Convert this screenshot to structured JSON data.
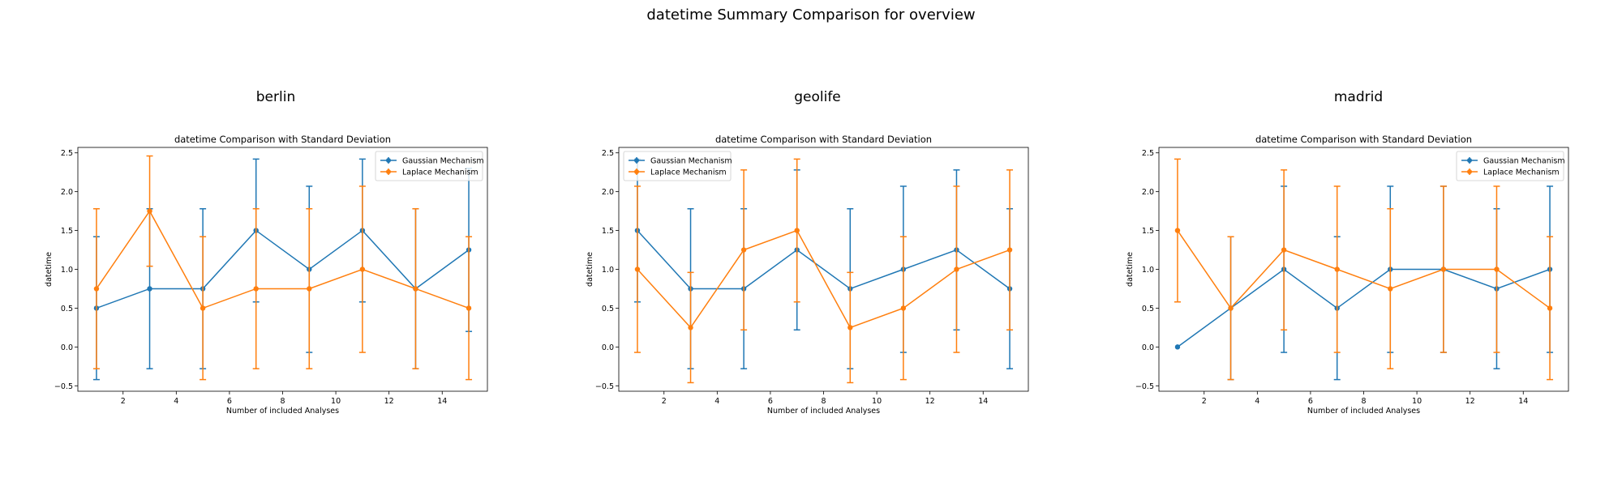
{
  "suptitle": "datetime Summary Comparison for overview",
  "colors": {
    "gaussian": "#1f77b4",
    "laplace": "#ff7f0e"
  },
  "chart_data": [
    {
      "type": "line",
      "subfigure_title": "berlin",
      "title": "datetime Comparison with Standard Deviation",
      "xlabel": "Number of included Analyses",
      "ylabel": "datetime",
      "xlim": [
        0.3,
        15.7
      ],
      "ylim": [
        -0.57,
        2.57
      ],
      "xticks": [
        2,
        4,
        6,
        8,
        10,
        12,
        14
      ],
      "yticks": [
        -0.5,
        0.0,
        0.5,
        1.0,
        1.5,
        2.0,
        2.5
      ],
      "ytick_labels": [
        "−0.5",
        "0.0",
        "0.5",
        "1.0",
        "1.5",
        "2.0",
        "2.5"
      ],
      "grid": false,
      "legend_position": "upper right",
      "x": [
        1,
        3,
        5,
        7,
        9,
        11,
        13,
        15
      ],
      "series": [
        {
          "name": "Gaussian Mechanism",
          "color": "#1f77b4",
          "values": [
            0.5,
            0.75,
            0.75,
            1.5,
            1.0,
            1.5,
            0.75,
            1.25
          ],
          "std": [
            0.92,
            1.03,
            1.03,
            0.92,
            1.07,
            0.92,
            1.03,
            1.05
          ]
        },
        {
          "name": "Laplace Mechanism",
          "color": "#ff7f0e",
          "values": [
            0.75,
            1.75,
            0.5,
            0.75,
            0.75,
            1.0,
            0.75,
            0.5
          ],
          "std": [
            1.03,
            0.71,
            0.92,
            1.03,
            1.03,
            1.07,
            1.03,
            0.92
          ]
        }
      ]
    },
    {
      "type": "line",
      "subfigure_title": "geolife",
      "title": "datetime Comparison with Standard Deviation",
      "xlabel": "Number of included Analyses",
      "ylabel": "datetime",
      "xlim": [
        0.3,
        15.7
      ],
      "ylim": [
        -0.57,
        2.57
      ],
      "xticks": [
        2,
        4,
        6,
        8,
        10,
        12,
        14
      ],
      "yticks": [
        -0.5,
        0.0,
        0.5,
        1.0,
        1.5,
        2.0,
        2.5
      ],
      "ytick_labels": [
        "−0.5",
        "0.0",
        "0.5",
        "1.0",
        "1.5",
        "2.0",
        "2.5"
      ],
      "grid": false,
      "legend_position": "upper left",
      "x": [
        1,
        3,
        5,
        7,
        9,
        11,
        13,
        15
      ],
      "series": [
        {
          "name": "Gaussian Mechanism",
          "color": "#1f77b4",
          "values": [
            1.5,
            0.75,
            0.75,
            1.25,
            0.75,
            1.0,
            1.25,
            0.75
          ],
          "std": [
            0.92,
            1.03,
            1.03,
            1.03,
            1.03,
            1.07,
            1.03,
            1.03
          ]
        },
        {
          "name": "Laplace Mechanism",
          "color": "#ff7f0e",
          "values": [
            1.0,
            0.25,
            1.25,
            1.5,
            0.25,
            0.5,
            1.0,
            1.25
          ],
          "std": [
            1.07,
            0.71,
            1.03,
            0.92,
            0.71,
            0.92,
            1.07,
            1.03
          ]
        }
      ]
    },
    {
      "type": "line",
      "subfigure_title": "madrid",
      "title": "datetime Comparison with Standard Deviation",
      "xlabel": "Number of included Analyses",
      "ylabel": "datetime",
      "xlim": [
        0.3,
        15.7
      ],
      "ylim": [
        -0.57,
        2.57
      ],
      "xticks": [
        2,
        4,
        6,
        8,
        10,
        12,
        14
      ],
      "yticks": [
        -0.5,
        0.0,
        0.5,
        1.0,
        1.5,
        2.0,
        2.5
      ],
      "ytick_labels": [
        "−0.5",
        "0.0",
        "0.5",
        "1.0",
        "1.5",
        "2.0",
        "2.5"
      ],
      "grid": false,
      "legend_position": "upper right",
      "x": [
        1,
        3,
        5,
        7,
        9,
        11,
        13,
        15
      ],
      "series": [
        {
          "name": "Gaussian Mechanism",
          "color": "#1f77b4",
          "values": [
            0.0,
            0.5,
            1.0,
            0.5,
            1.0,
            1.0,
            0.75,
            1.0
          ],
          "std": [
            0.0,
            0.92,
            1.07,
            0.92,
            1.07,
            1.07,
            1.03,
            1.07
          ]
        },
        {
          "name": "Laplace Mechanism",
          "color": "#ff7f0e",
          "values": [
            1.5,
            0.5,
            1.25,
            1.0,
            0.75,
            1.0,
            1.0,
            0.5
          ],
          "std": [
            0.92,
            0.92,
            1.03,
            1.07,
            1.03,
            1.07,
            1.07,
            0.92
          ]
        }
      ]
    }
  ]
}
